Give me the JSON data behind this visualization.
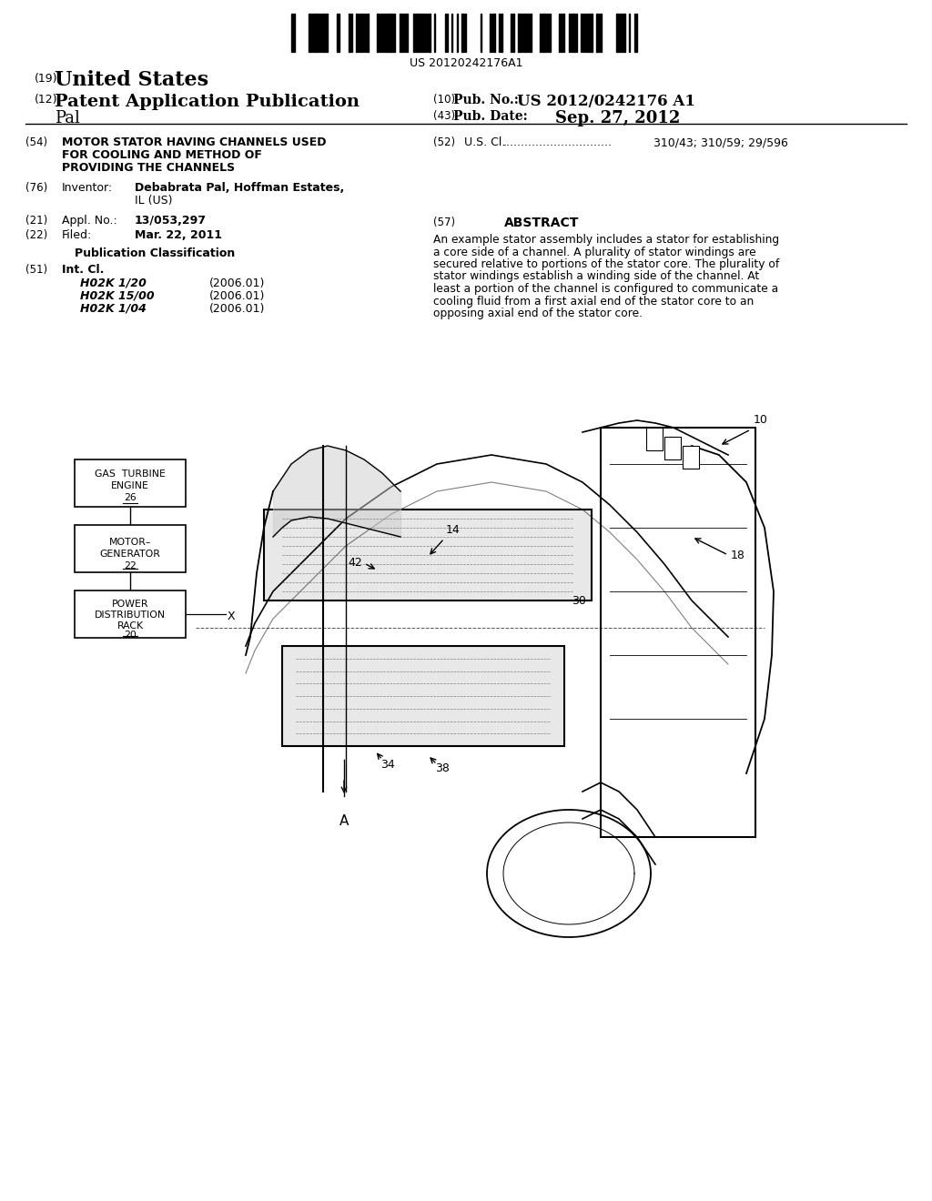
{
  "barcode_text": "US 20120242176A1",
  "country": "United States",
  "label_19": "(19)",
  "label_12": "(12)",
  "pub_type": "Patent Application Publication",
  "inventor_last": "Pal",
  "label_10": "(10)",
  "pub_no_label": "Pub. No.:",
  "pub_no": "US 2012/0242176 A1",
  "label_43": "(43)",
  "pub_date_label": "Pub. Date:",
  "pub_date": "Sep. 27, 2012",
  "label_54": "(54)",
  "title_line1": "MOTOR STATOR HAVING CHANNELS USED",
  "title_line2": "FOR COOLING AND METHOD OF",
  "title_line3": "PROVIDING THE CHANNELS",
  "label_76": "(76)",
  "inventor_label": "Inventor:",
  "inventor_name": "Debabrata Pal,",
  "inventor_city": "Hoffman Estates,",
  "inventor_state": "IL (US)",
  "label_21": "(21)",
  "appl_label": "Appl. No.:",
  "appl_no": "13/053,297",
  "label_22": "(22)",
  "filed_label": "Filed:",
  "filed_date": "Mar. 22, 2011",
  "pub_class_header": "Publication Classification",
  "label_51": "(51)",
  "int_cl_label": "Int. Cl.",
  "classes": [
    [
      "H02K 1/20",
      "(2006.01)"
    ],
    [
      "H02K 15/00",
      "(2006.01)"
    ],
    [
      "H02K 1/04",
      "(2006.01)"
    ]
  ],
  "label_52": "(52)",
  "us_cl_label": "U.S. Cl.",
  "us_cl_dots": "..............................",
  "us_cl_value": "310/43; 310/59; 29/596",
  "label_57": "(57)",
  "abstract_header": "ABSTRACT",
  "abstract_lines": [
    "An example stator assembly includes a stator for establishing",
    "a core side of a channel. A plurality of stator windings are",
    "secured relative to portions of the stator core. The plurality of",
    "stator windings establish a winding side of the channel. At",
    "least a portion of the channel is configured to communicate a",
    "cooling fluid from a first axial end of the stator core to an",
    "opposing axial end of the stator core."
  ],
  "bg_color": "#ffffff",
  "text_color": "#000000"
}
